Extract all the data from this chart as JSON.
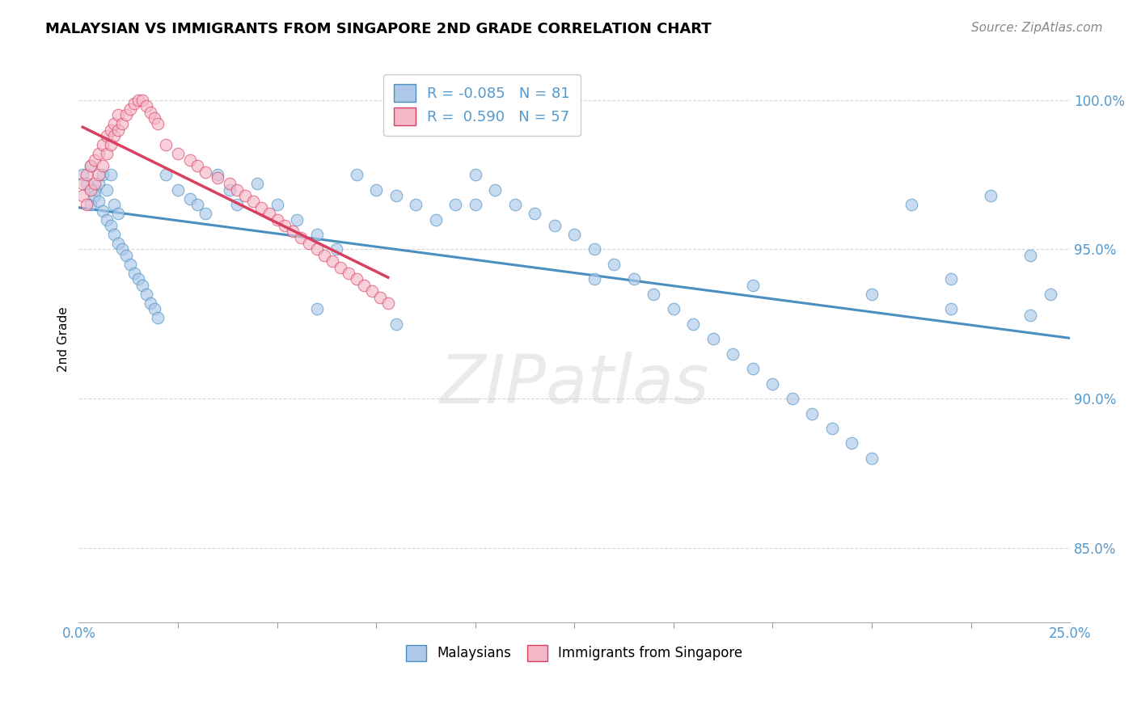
{
  "title": "MALAYSIAN VS IMMIGRANTS FROM SINGAPORE 2ND GRADE CORRELATION CHART",
  "source_text": "Source: ZipAtlas.com",
  "ylabel": "2nd Grade",
  "xlim": [
    0.0,
    0.25
  ],
  "ylim": [
    0.825,
    1.015
  ],
  "yticks": [
    0.85,
    0.9,
    0.95,
    1.0
  ],
  "ytick_labels": [
    "85.0%",
    "90.0%",
    "95.0%",
    "100.0%"
  ],
  "legend_blue_label": "Malaysians",
  "legend_pink_label": "Immigrants from Singapore",
  "R_blue": -0.085,
  "N_blue": 81,
  "R_pink": 0.59,
  "N_pink": 57,
  "blue_color": "#adc8e8",
  "pink_color": "#f5b8c8",
  "blue_line_color": "#4a8fc0",
  "pink_line_color": "#d84060",
  "watermark": "ZIPatlas",
  "blue_scatter_x": [
    0.001,
    0.002,
    0.003,
    0.003,
    0.004,
    0.004,
    0.005,
    0.005,
    0.006,
    0.006,
    0.007,
    0.007,
    0.008,
    0.008,
    0.009,
    0.009,
    0.01,
    0.01,
    0.011,
    0.012,
    0.013,
    0.014,
    0.015,
    0.016,
    0.017,
    0.018,
    0.019,
    0.02,
    0.022,
    0.025,
    0.028,
    0.03,
    0.032,
    0.035,
    0.038,
    0.04,
    0.045,
    0.05,
    0.055,
    0.06,
    0.065,
    0.07,
    0.075,
    0.08,
    0.085,
    0.09,
    0.095,
    0.1,
    0.105,
    0.11,
    0.115,
    0.12,
    0.125,
    0.13,
    0.135,
    0.14,
    0.145,
    0.15,
    0.155,
    0.16,
    0.165,
    0.17,
    0.175,
    0.18,
    0.185,
    0.19,
    0.195,
    0.2,
    0.21,
    0.22,
    0.23,
    0.24,
    0.245,
    0.06,
    0.08,
    0.1,
    0.13,
    0.17,
    0.2,
    0.22,
    0.24
  ],
  "blue_scatter_y": [
    0.975,
    0.972,
    0.978,
    0.965,
    0.97,
    0.968,
    0.972,
    0.966,
    0.975,
    0.963,
    0.97,
    0.96,
    0.975,
    0.958,
    0.965,
    0.955,
    0.962,
    0.952,
    0.95,
    0.948,
    0.945,
    0.942,
    0.94,
    0.938,
    0.935,
    0.932,
    0.93,
    0.927,
    0.975,
    0.97,
    0.967,
    0.965,
    0.962,
    0.975,
    0.97,
    0.965,
    0.972,
    0.965,
    0.96,
    0.955,
    0.95,
    0.975,
    0.97,
    0.968,
    0.965,
    0.96,
    0.965,
    0.975,
    0.97,
    0.965,
    0.962,
    0.958,
    0.955,
    0.95,
    0.945,
    0.94,
    0.935,
    0.93,
    0.925,
    0.92,
    0.915,
    0.91,
    0.905,
    0.9,
    0.895,
    0.89,
    0.885,
    0.88,
    0.965,
    0.94,
    0.968,
    0.948,
    0.935,
    0.93,
    0.925,
    0.965,
    0.94,
    0.938,
    0.935,
    0.93,
    0.928
  ],
  "pink_scatter_x": [
    0.001,
    0.001,
    0.002,
    0.002,
    0.003,
    0.003,
    0.004,
    0.004,
    0.005,
    0.005,
    0.006,
    0.006,
    0.007,
    0.007,
    0.008,
    0.008,
    0.009,
    0.009,
    0.01,
    0.01,
    0.011,
    0.012,
    0.013,
    0.014,
    0.015,
    0.016,
    0.017,
    0.018,
    0.019,
    0.02,
    0.022,
    0.025,
    0.028,
    0.03,
    0.032,
    0.035,
    0.038,
    0.04,
    0.042,
    0.044,
    0.046,
    0.048,
    0.05,
    0.052,
    0.054,
    0.056,
    0.058,
    0.06,
    0.062,
    0.064,
    0.066,
    0.068,
    0.07,
    0.072,
    0.074,
    0.076,
    0.078
  ],
  "pink_scatter_y": [
    0.968,
    0.972,
    0.965,
    0.975,
    0.97,
    0.978,
    0.972,
    0.98,
    0.975,
    0.982,
    0.978,
    0.985,
    0.982,
    0.988,
    0.985,
    0.99,
    0.988,
    0.992,
    0.99,
    0.995,
    0.992,
    0.995,
    0.997,
    0.999,
    1.0,
    1.0,
    0.998,
    0.996,
    0.994,
    0.992,
    0.985,
    0.982,
    0.98,
    0.978,
    0.976,
    0.974,
    0.972,
    0.97,
    0.968,
    0.966,
    0.964,
    0.962,
    0.96,
    0.958,
    0.956,
    0.954,
    0.952,
    0.95,
    0.948,
    0.946,
    0.944,
    0.942,
    0.94,
    0.938,
    0.936,
    0.934,
    0.932
  ]
}
